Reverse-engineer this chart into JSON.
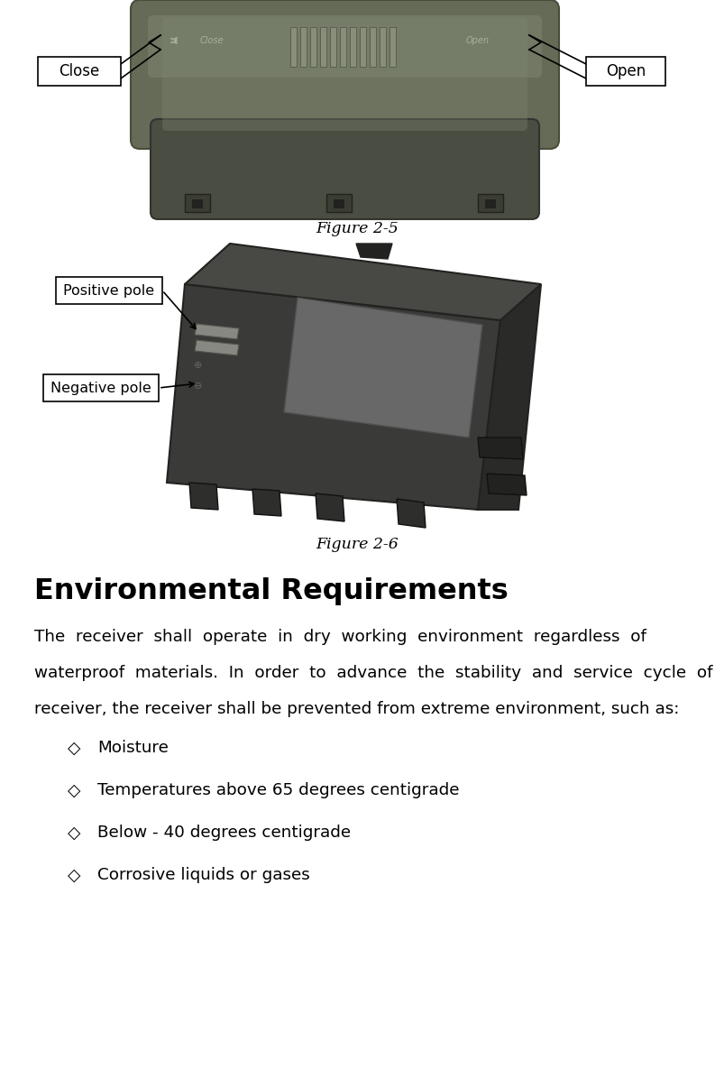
{
  "figure_caption_1": "Figure 2-5",
  "figure_caption_2": "Figure 2-6",
  "section_title": "Environmental Requirements",
  "bullet_items": [
    "Moisture",
    "Temperatures above 65 degrees centigrade",
    "Below - 40 degrees centigrade",
    "Corrosive liquids or gases"
  ],
  "bullet_symbol": "◇",
  "bg_color": "#ffffff",
  "text_color": "#000000",
  "label_close": "Close",
  "label_open": "Open",
  "label_positive": "Positive pole",
  "label_negative": "Negative pole",
  "fig_width": 7.93,
  "fig_height": 11.85,
  "para_line1": "The  receiver  shall  operate  in  dry  working  environment  regardless  of",
  "para_line2": "waterproof  materials.  In  order  to  advance  the  stability  and  service  cycle  of",
  "para_line3": "receiver, the receiver shall be prevented from extreme environment, such as:"
}
